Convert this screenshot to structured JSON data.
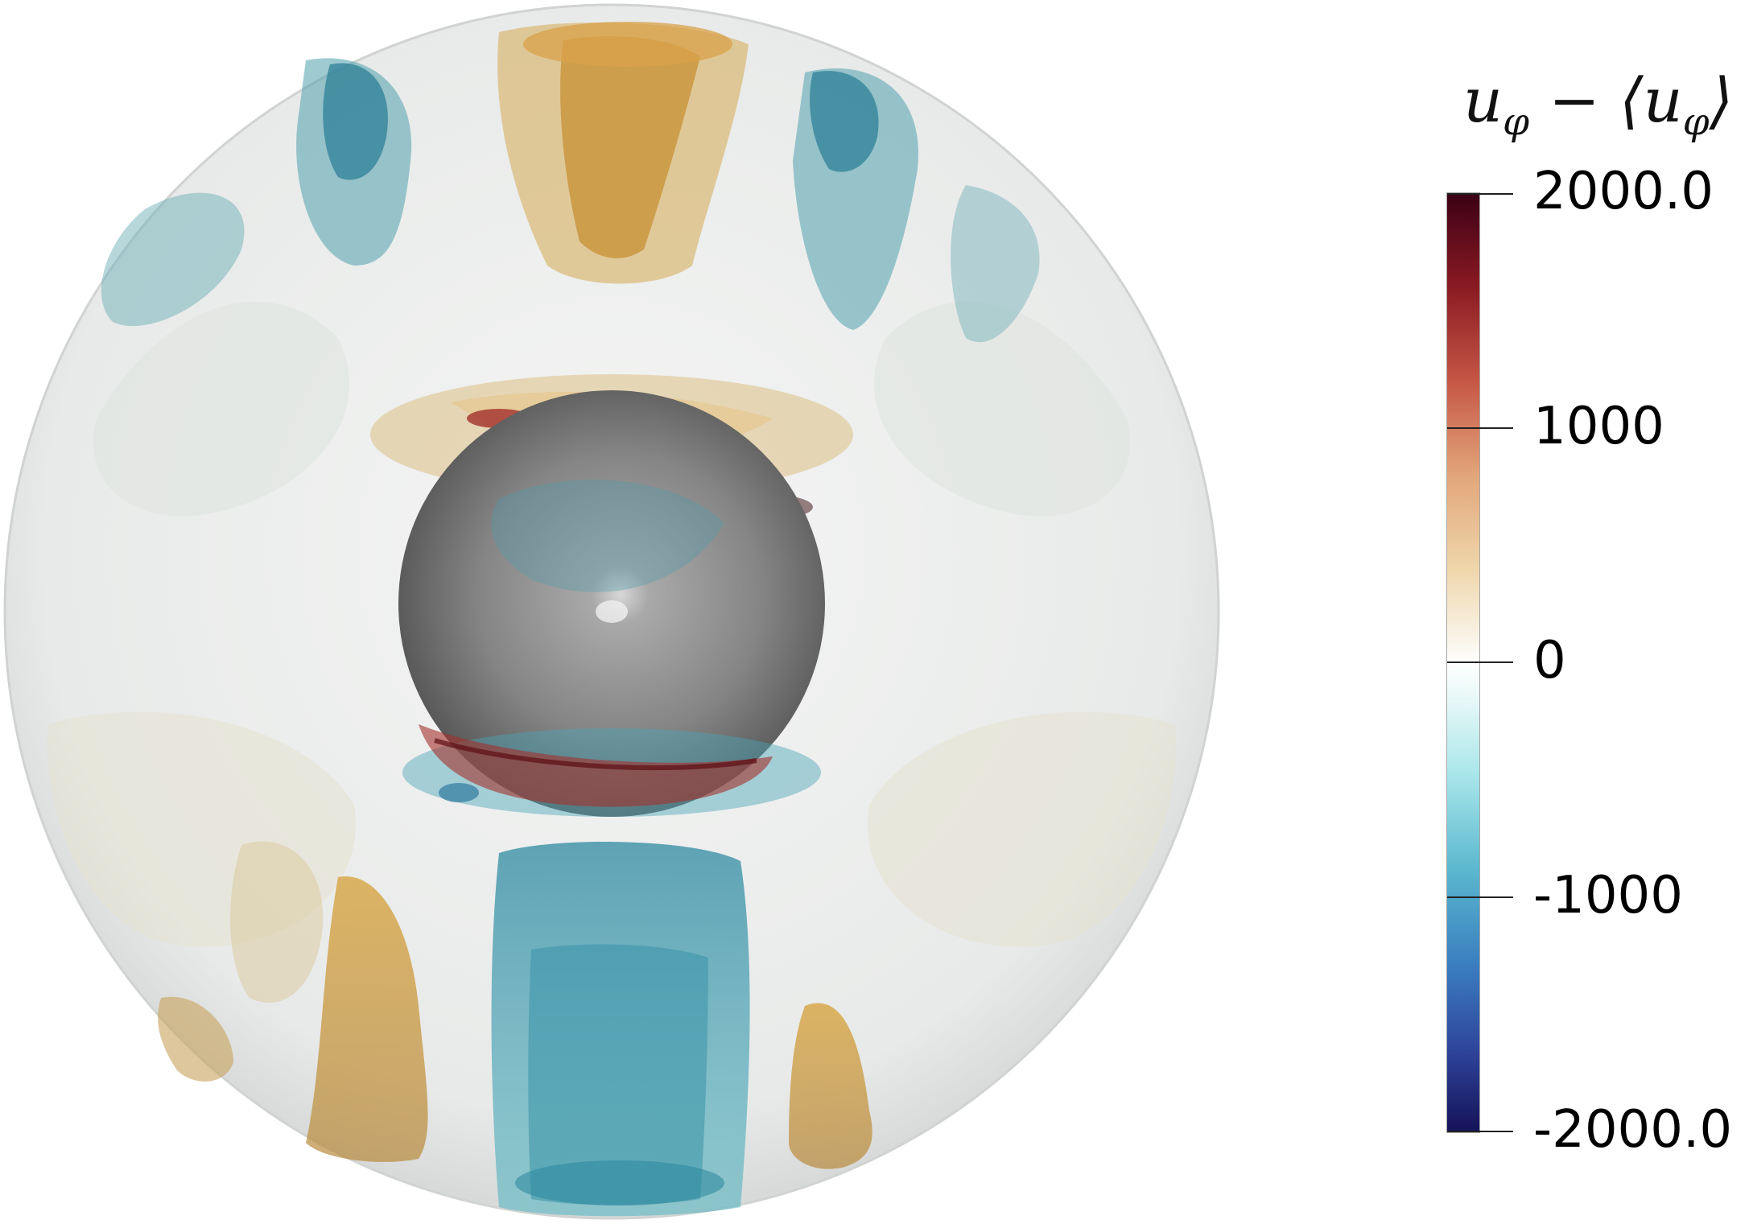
{
  "colorbar": {
    "title_main": "u",
    "title_sub": "φ",
    "title_mid": " − ⟨",
    "title_main2": "u",
    "title_sub2": "φ",
    "title_end": "⟩",
    "ticks": [
      {
        "label": "2000.0",
        "value": 2000
      },
      {
        "label": "1000",
        "value": 1000
      },
      {
        "label": "0",
        "value": 0
      },
      {
        "label": "-1000",
        "value": -1000
      },
      {
        "label": "-2000.0",
        "value": -2000
      }
    ],
    "range": [
      -2000,
      2000
    ],
    "colors": {
      "max": "#3b0015",
      "high": "#c55645",
      "mid_high": "#efd6ab",
      "zero": "#ffffff",
      "mid_low": "#a8e6ea",
      "low": "#3a7fc0",
      "min": "#151258"
    }
  },
  "scene": {
    "shell_color": "#e9ebea",
    "inner_core_color": "#8e8e8e",
    "positive_plume_color": "#c9a14d",
    "negative_plume_color": "#4aa4b5"
  }
}
